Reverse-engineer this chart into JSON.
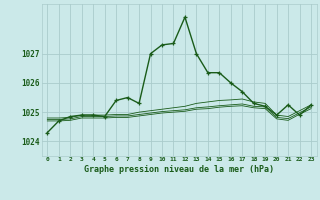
{
  "title": "Graphe pression niveau de la mer (hPa)",
  "background_color": "#cbe9e9",
  "grid_color": "#aacccc",
  "line_color": "#1a5c1a",
  "xticks": [
    0,
    1,
    2,
    3,
    4,
    5,
    6,
    7,
    8,
    9,
    10,
    11,
    12,
    13,
    14,
    15,
    16,
    17,
    18,
    19,
    20,
    21,
    22,
    23
  ],
  "ylim": [
    1023.5,
    1028.7
  ],
  "yticks": [
    1024,
    1025,
    1026,
    1027
  ],
  "series": [
    [
      1024.3,
      1024.7,
      1024.85,
      1024.9,
      1024.9,
      1024.85,
      1025.4,
      1025.5,
      1025.3,
      1027.0,
      1027.3,
      1027.35,
      1028.25,
      1027.0,
      1026.35,
      1026.35,
      1026.0,
      1025.7,
      1025.3,
      1025.2,
      1024.9,
      1025.25,
      1024.9,
      1025.25
    ],
    [
      1024.8,
      1024.8,
      1024.82,
      1024.9,
      1024.9,
      1024.9,
      1024.92,
      1024.92,
      1025.0,
      1025.05,
      1025.1,
      1025.15,
      1025.2,
      1025.3,
      1025.35,
      1025.4,
      1025.42,
      1025.45,
      1025.35,
      1025.3,
      1024.9,
      1024.85,
      1025.05,
      1025.25
    ],
    [
      1024.75,
      1024.75,
      1024.77,
      1024.85,
      1024.85,
      1024.85,
      1024.87,
      1024.87,
      1024.92,
      1024.97,
      1025.02,
      1025.05,
      1025.08,
      1025.15,
      1025.18,
      1025.22,
      1025.25,
      1025.28,
      1025.2,
      1025.18,
      1024.82,
      1024.78,
      1024.98,
      1025.18
    ],
    [
      1024.7,
      1024.7,
      1024.72,
      1024.8,
      1024.8,
      1024.8,
      1024.82,
      1024.82,
      1024.87,
      1024.92,
      1024.97,
      1025.0,
      1025.03,
      1025.1,
      1025.12,
      1025.17,
      1025.2,
      1025.22,
      1025.15,
      1025.12,
      1024.77,
      1024.72,
      1024.93,
      1025.12
    ]
  ]
}
